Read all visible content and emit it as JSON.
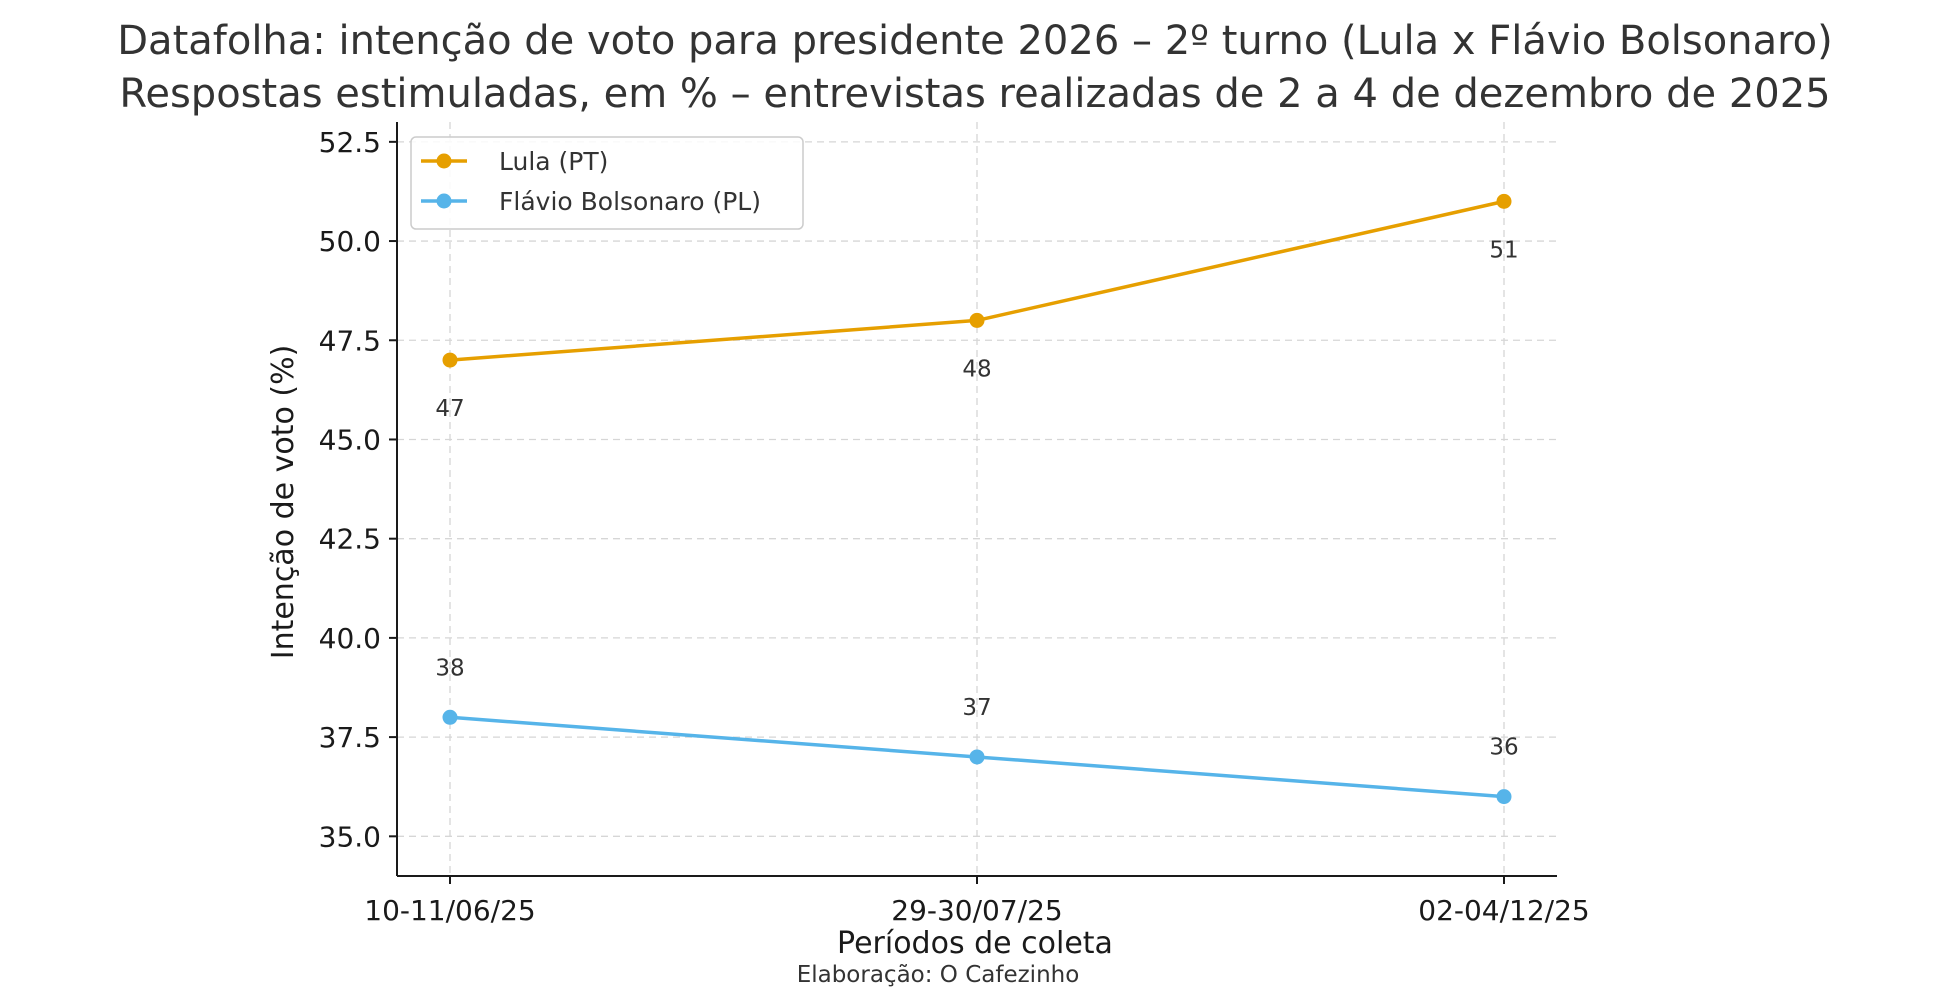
{
  "chart_data": {
    "type": "line",
    "title": "Datafolha: intenção de voto para presidente 2026 – 2º turno (Lula x Flávio Bolsonaro)",
    "subtitle": "Respostas estimuladas, em % – entrevistas realizadas de 2 a 4 de dezembro de 2025",
    "xlabel": "Períodos de coleta",
    "ylabel": "Intenção de voto (%)",
    "credit": "Elaboração: O Cafezinho",
    "categories": [
      "10-11/06/25",
      "29-30/07/25",
      "02-04/12/25"
    ],
    "ylim": [
      34,
      53
    ],
    "yticks": [
      35.0,
      37.5,
      40.0,
      42.5,
      45.0,
      47.5,
      50.0,
      52.5
    ],
    "ytick_labels": [
      "35.0",
      "37.5",
      "40.0",
      "42.5",
      "45.0",
      "47.5",
      "50.0",
      "52.5"
    ],
    "grid": true,
    "legend_position": "top-left",
    "series": [
      {
        "name": "Lula (PT)",
        "color": "#E69F00",
        "values": [
          47,
          48,
          51
        ],
        "labels": [
          "47",
          "48",
          "51"
        ],
        "label_position": "below"
      },
      {
        "name": "Flávio Bolsonaro (PL)",
        "color": "#56B4E9",
        "values": [
          38,
          37,
          36
        ],
        "labels": [
          "38",
          "37",
          "36"
        ],
        "label_position": "above"
      }
    ]
  }
}
